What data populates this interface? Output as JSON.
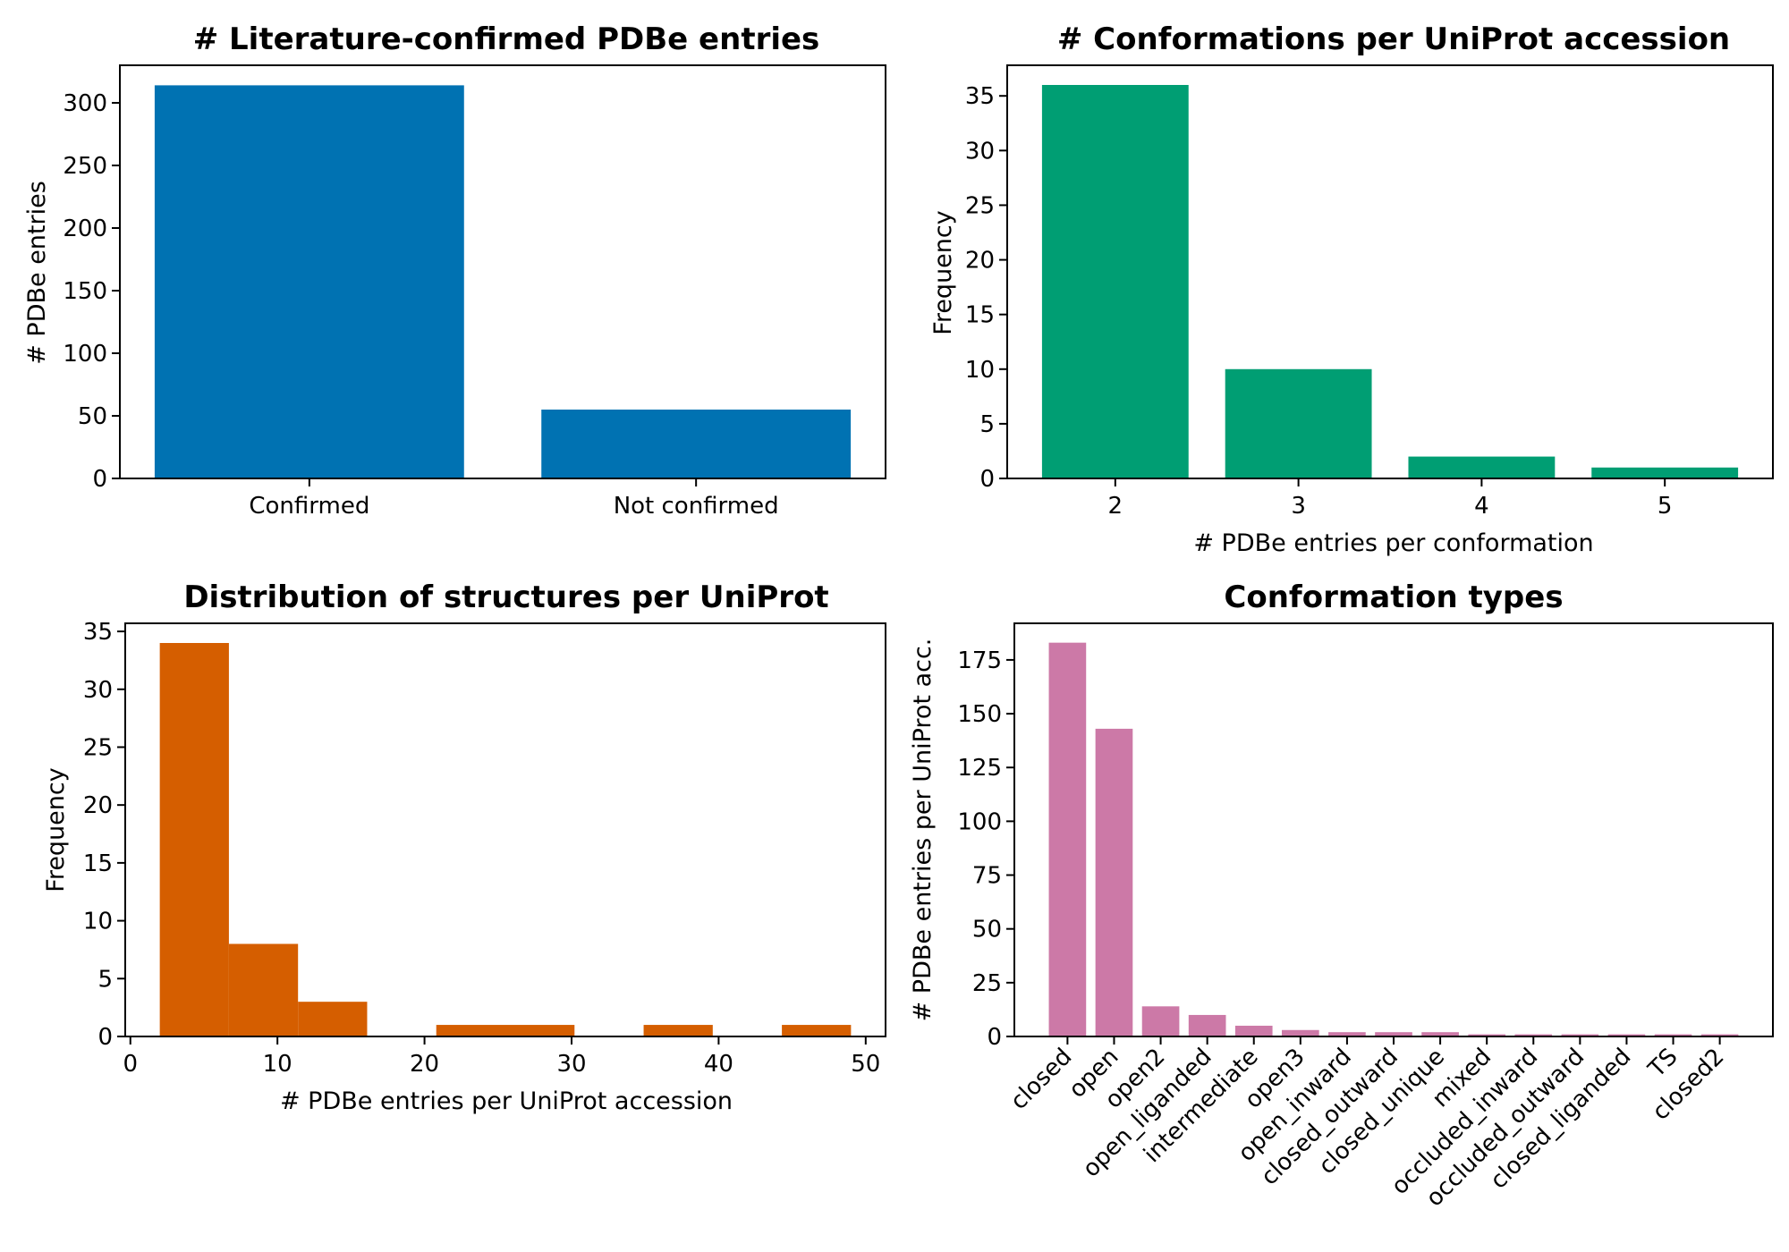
{
  "chart_data": [
    {
      "type": "bar",
      "title": "# Literature-confirmed PDBe entries",
      "xlabel": "",
      "ylabel": "# PDBe entries",
      "categories": [
        "Confirmed",
        "Not confirmed"
      ],
      "values": [
        314,
        55
      ],
      "ylim": [
        0,
        330
      ],
      "yticks": [
        0,
        50,
        100,
        150,
        200,
        250,
        300
      ],
      "color": "#0072b2",
      "grid": false
    },
    {
      "type": "bar",
      "title": "# Conformations per UniProt accession",
      "xlabel": "# PDBe entries per conformation",
      "ylabel": "Frequency",
      "categories": [
        "2",
        "3",
        "4",
        "5"
      ],
      "values": [
        36,
        10,
        2,
        1
      ],
      "ylim": [
        0,
        37.8
      ],
      "yticks": [
        0,
        5,
        10,
        15,
        20,
        25,
        30,
        35
      ],
      "color": "#009e73",
      "grid": false
    },
    {
      "type": "bar",
      "subtype": "histogram",
      "title": "Distribution of structures per UniProt",
      "xlabel": "# PDBe entries per UniProt accession",
      "ylabel": "Frequency",
      "bin_edges": [
        2,
        6.7,
        11.4,
        16.1,
        20.8,
        25.5,
        30.2,
        34.9,
        39.6,
        44.3,
        49
      ],
      "values": [
        34,
        8,
        3,
        0,
        1,
        1,
        0,
        1,
        0,
        1
      ],
      "xlim": [
        -0.35,
        51.35
      ],
      "xticks": [
        0,
        10,
        20,
        30,
        40,
        50
      ],
      "ylim": [
        0,
        35.7
      ],
      "yticks": [
        0,
        5,
        10,
        15,
        20,
        25,
        30,
        35
      ],
      "color": "#d55e00",
      "grid": false
    },
    {
      "type": "bar",
      "title": "Conformation types",
      "xlabel": "",
      "ylabel": "# PDBe entries per UniProt acc.",
      "categories": [
        "closed",
        "open",
        "open2",
        "open_liganded",
        "intermediate",
        "open3",
        "open_inward",
        "closed_outward",
        "closed_unique",
        "mixed",
        "occluded_inward",
        "occluded_outward",
        "closed_liganded",
        "TS",
        "closed2"
      ],
      "values": [
        183,
        143,
        14,
        10,
        5,
        3,
        2,
        2,
        2,
        1,
        1,
        1,
        1,
        1,
        1
      ],
      "ylim": [
        0,
        192
      ],
      "yticks": [
        0,
        25,
        50,
        75,
        100,
        125,
        150,
        175
      ],
      "color": "#cc79a7",
      "grid": false
    }
  ]
}
